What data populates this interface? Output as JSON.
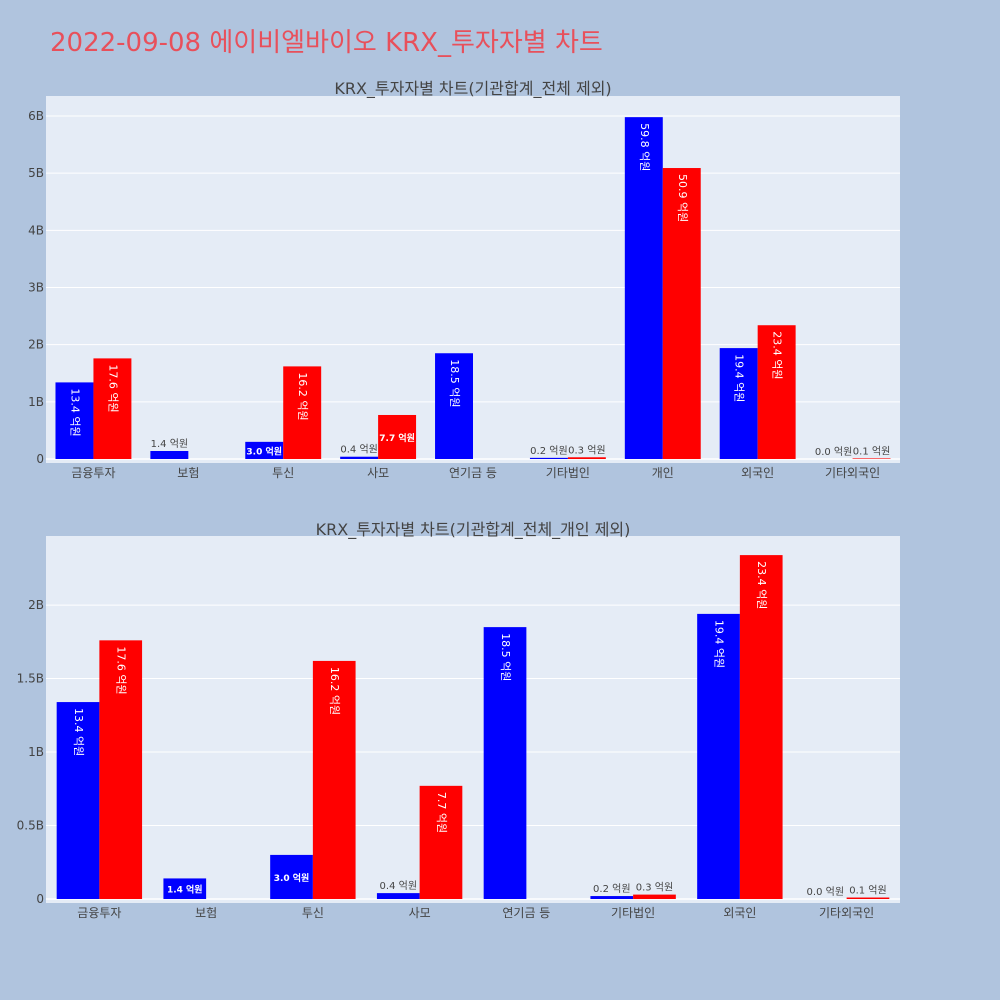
{
  "page_title": "2022-09-08 에이비엘바이오 KRX_투자자별 차트",
  "colors": {
    "title": "#e8505b",
    "page_bg": "#b0c4de",
    "plot_bg": "#e5ecf6",
    "series_blue": "#0000ff",
    "series_red": "#ff0000"
  },
  "chart_data": [
    {
      "type": "bar",
      "title": "KRX_투자자별 차트(기관합계_전체 제외)",
      "categories": [
        "금융투자",
        "보험",
        "투신",
        "사모",
        "연기금 등",
        "기타법인",
        "개인",
        "외국인",
        "기타외국인"
      ],
      "yticks": [
        "0",
        "1B",
        "2B",
        "3B",
        "4B",
        "5B",
        "6B"
      ],
      "ylim": [
        0,
        6.35
      ],
      "series": [
        {
          "color": "#0000ff",
          "values": [
            1.34,
            0.14,
            0.3,
            0.04,
            1.85,
            0.02,
            5.98,
            1.94,
            0.0
          ],
          "labels": [
            "13.4 억원",
            "1.4 억원",
            "3.0 억원",
            "0.4 억원",
            "18.5 억원",
            "0.2 억원",
            "59.8 억원",
            "19.4 억원",
            "0.0 억원"
          ]
        },
        {
          "color": "#ff0000",
          "values": [
            1.76,
            0,
            1.62,
            0.77,
            0,
            0.03,
            5.09,
            2.34,
            0.01
          ],
          "labels": [
            "17.6 억원",
            "",
            "16.2 억원",
            "7.7 억원",
            "",
            "0.3 억원",
            "50.9 억원",
            "23.4 억원",
            "0.1 억원"
          ]
        }
      ]
    },
    {
      "type": "bar",
      "title": "KRX_투자자별 차트(기관합계_전체_개인 제외)",
      "categories": [
        "금융투자",
        "보험",
        "투신",
        "사모",
        "연기금 등",
        "기타법인",
        "외국인",
        "기타외국인"
      ],
      "yticks": [
        "0",
        "0.5B",
        "1B",
        "1.5B",
        "2B"
      ],
      "ylim": [
        0,
        2.47
      ],
      "series": [
        {
          "color": "#0000ff",
          "values": [
            1.34,
            0.14,
            0.3,
            0.04,
            1.85,
            0.02,
            1.94,
            0.0
          ],
          "labels": [
            "13.4 억원",
            "1.4 억원",
            "3.0 억원",
            "0.4 억원",
            "18.5 억원",
            "0.2 억원",
            "19.4 억원",
            "0.0 억원"
          ]
        },
        {
          "color": "#ff0000",
          "values": [
            1.76,
            0,
            1.62,
            0.77,
            0,
            0.03,
            2.34,
            0.01
          ],
          "labels": [
            "17.6 억원",
            "",
            "16.2 억원",
            "7.7 억원",
            "",
            "0.3 억원",
            "23.4 억원",
            "0.1 억원"
          ]
        }
      ]
    }
  ]
}
